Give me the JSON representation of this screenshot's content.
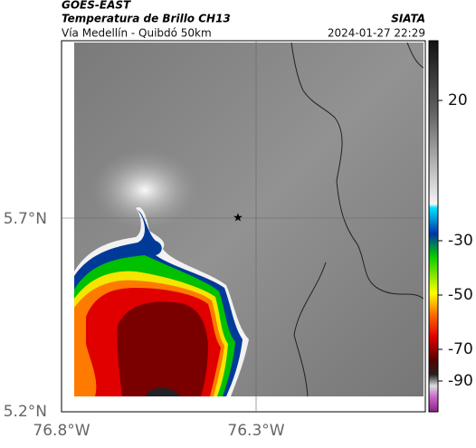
{
  "header": {
    "product": "GOES-EAST",
    "title": "Temperatura de Brillo CH13",
    "route": "Vía Medellín - Quibdó 50km",
    "source": "SIATA",
    "timestamp": "2024-01-27 22:29"
  },
  "axes": {
    "lat_labels": [
      "5.7°N",
      "5.2°N"
    ],
    "lon_labels": [
      "76.8°W",
      "76.3°W"
    ]
  },
  "colorbar": {
    "labels": [
      "20",
      "-30",
      "-50",
      "-70",
      "-90"
    ]
  }
}
